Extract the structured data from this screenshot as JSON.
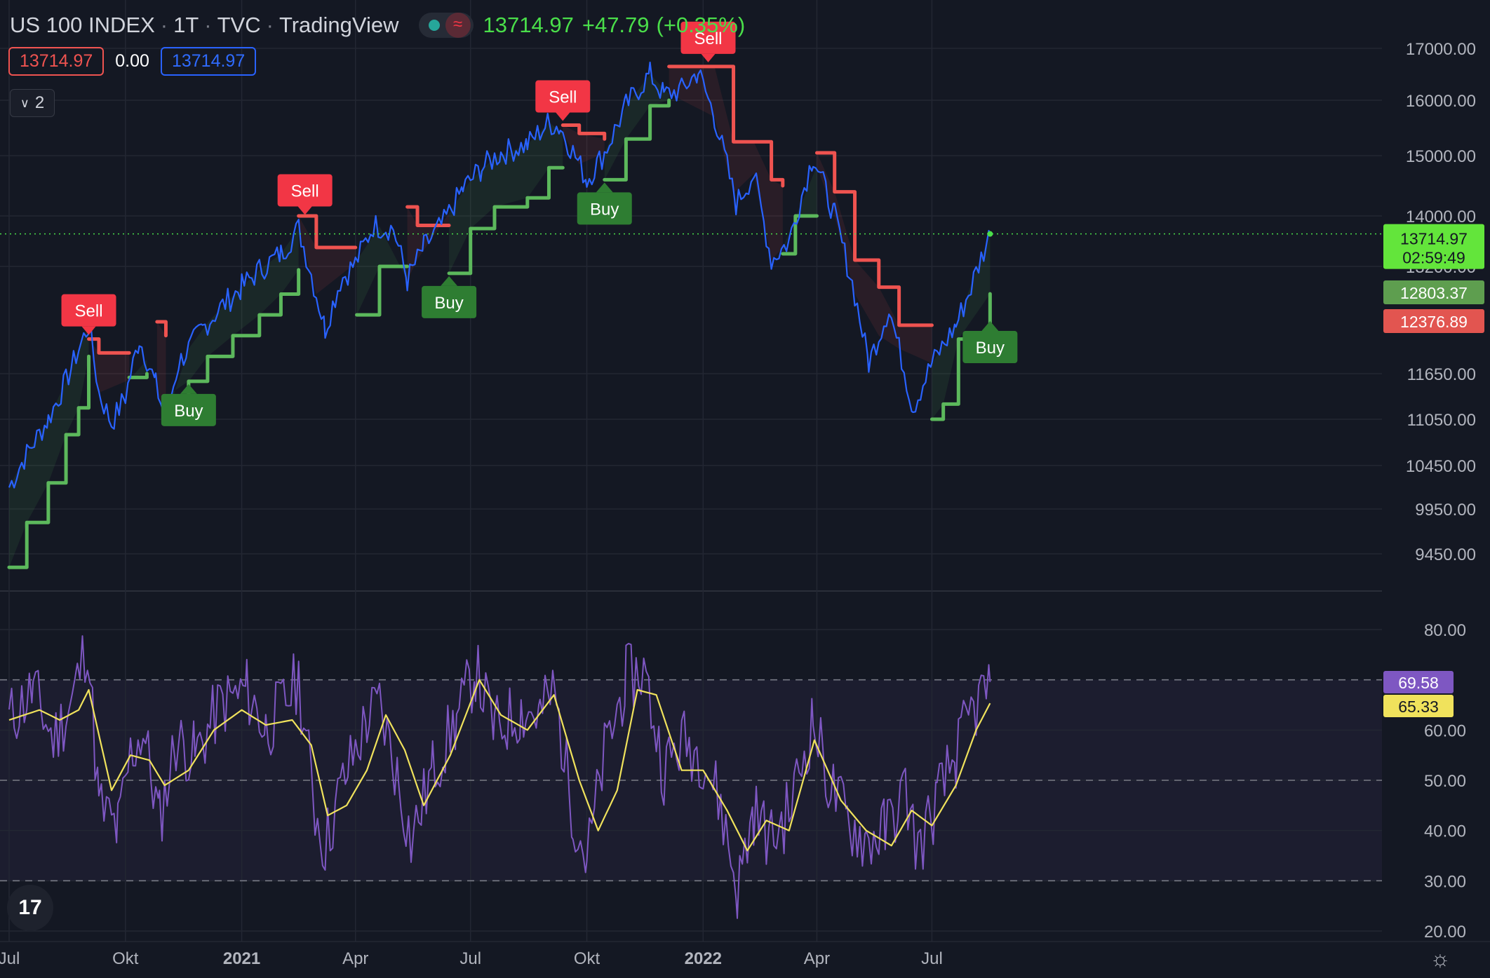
{
  "header": {
    "symbol": "US 100 INDEX",
    "interval": "1T",
    "exchange": "TVC",
    "platform": "TradingView",
    "last": "13714.97",
    "change": "+47.79",
    "change_pct": "(+0.35%)"
  },
  "values_row": {
    "v1": "13714.97",
    "v2": "0.00",
    "v3": "13714.97"
  },
  "collapse_label": "2",
  "logo_text": "17",
  "colors": {
    "background": "#141823",
    "price_line": "#2962ff",
    "supertrend_up": "#5cb85c",
    "supertrend_down": "#ef5350",
    "rsi": "#7e57c2",
    "rsi_ma": "#f0e25c",
    "last_price": "#4ade4a"
  },
  "chart_data": [
    {
      "type": "line",
      "yaxis_ticks": [
        17000,
        16000,
        15000,
        14000,
        13200,
        11650,
        11050,
        10450,
        9950,
        9450
      ],
      "yaxis_tick_labels": [
        "17000.00",
        "16000.00",
        "15000.00",
        "14000.00",
        "13200.00",
        "11650.00",
        "11050.00",
        "10450.00",
        "9950.00",
        "9450.00"
      ],
      "xaxis_labels": [
        "Jul",
        "Okt",
        "2021",
        "Apr",
        "Jul",
        "Okt",
        "2022",
        "Apr",
        "Jul"
      ],
      "grid": true,
      "price_points": [
        [
          "2020-07-01",
          10200
        ],
        [
          "2020-07-15",
          10600
        ],
        [
          "2020-08-01",
          11050
        ],
        [
          "2020-08-15",
          11550
        ],
        [
          "2020-08-25",
          12000
        ],
        [
          "2020-09-02",
          12350
        ],
        [
          "2020-09-10",
          11400
        ],
        [
          "2020-09-20",
          11000
        ],
        [
          "2020-10-01",
          11350
        ],
        [
          "2020-10-12",
          12150
        ],
        [
          "2020-10-25",
          11500
        ],
        [
          "2020-11-02",
          11050
        ],
        [
          "2020-11-12",
          11800
        ],
        [
          "2020-12-01",
          12300
        ],
        [
          "2020-12-15",
          12600
        ],
        [
          "2021-01-01",
          12900
        ],
        [
          "2021-01-15",
          13150
        ],
        [
          "2021-02-01",
          13400
        ],
        [
          "2021-02-15",
          13800
        ],
        [
          "2021-03-01",
          12800
        ],
        [
          "2021-03-08",
          12300
        ],
        [
          "2021-03-20",
          13000
        ],
        [
          "2021-04-01",
          13250
        ],
        [
          "2021-04-15",
          13850
        ],
        [
          "2021-05-01",
          13800
        ],
        [
          "2021-05-12",
          13000
        ],
        [
          "2021-05-25",
          13500
        ],
        [
          "2021-06-10",
          13900
        ],
        [
          "2021-06-25",
          14450
        ],
        [
          "2021-07-10",
          14800
        ],
        [
          "2021-07-25",
          15050
        ],
        [
          "2021-08-15",
          15200
        ],
        [
          "2021-09-01",
          15600
        ],
        [
          "2021-09-10",
          15500
        ],
        [
          "2021-10-01",
          14600
        ],
        [
          "2021-10-15",
          15050
        ],
        [
          "2021-11-01",
          15900
        ],
        [
          "2021-11-20",
          16500
        ],
        [
          "2021-12-01",
          16100
        ],
        [
          "2021-12-15",
          16200
        ],
        [
          "2021-12-28",
          16550
        ],
        [
          "2022-01-10",
          15700
        ],
        [
          "2022-01-27",
          14200
        ],
        [
          "2022-02-10",
          14700
        ],
        [
          "2022-02-24",
          13300
        ],
        [
          "2022-03-10",
          13600
        ],
        [
          "2022-03-29",
          15000
        ],
        [
          "2022-04-15",
          14000
        ],
        [
          "2022-05-01",
          12800
        ],
        [
          "2022-05-12",
          11800
        ],
        [
          "2022-05-28",
          12600
        ],
        [
          "2022-06-16",
          11200
        ],
        [
          "2022-07-01",
          11800
        ],
        [
          "2022-07-20",
          12350
        ],
        [
          "2022-08-01",
          12900
        ],
        [
          "2022-08-16",
          13714.97
        ]
      ],
      "supertrend_segments": [
        {
          "trend": "up",
          "points": [
            [
              "2020-07-01",
              9300
            ],
            [
              "2020-07-15",
              9800
            ],
            [
              "2020-08-01",
              10250
            ],
            [
              "2020-08-15",
              10850
            ],
            [
              "2020-08-25",
              11200
            ],
            [
              "2020-09-02",
              11900
            ]
          ]
        },
        {
          "trend": "down",
          "points": [
            [
              "2020-09-02",
              12150
            ],
            [
              "2020-09-10",
              11950
            ],
            [
              "2020-10-04",
              11950
            ]
          ]
        },
        {
          "trend": "up",
          "points": [
            [
              "2020-10-04",
              11600
            ],
            [
              "2020-10-18",
              11650
            ]
          ]
        },
        {
          "trend": "down",
          "points": [
            [
              "2020-10-26",
              12400
            ],
            [
              "2020-11-02",
              12200
            ]
          ]
        },
        {
          "trend": "up",
          "points": [
            [
              "2020-11-02",
              11350
            ],
            [
              "2020-11-20",
              11550
            ],
            [
              "2020-12-05",
              11900
            ],
            [
              "2020-12-25",
              12200
            ],
            [
              "2021-01-15",
              12500
            ],
            [
              "2021-02-01",
              12800
            ],
            [
              "2021-02-15",
              13150
            ]
          ]
        },
        {
          "trend": "down",
          "points": [
            [
              "2021-02-15",
              14000
            ],
            [
              "2021-03-01",
              13500
            ],
            [
              "2021-04-01",
              13500
            ]
          ]
        },
        {
          "trend": "up",
          "points": [
            [
              "2021-04-02",
              12500
            ],
            [
              "2021-04-20",
              13200
            ],
            [
              "2021-05-12",
              13200
            ]
          ]
        },
        {
          "trend": "down",
          "points": [
            [
              "2021-05-12",
              14150
            ],
            [
              "2021-05-20",
              13850
            ],
            [
              "2021-06-14",
              13850
            ]
          ]
        },
        {
          "trend": "up",
          "points": [
            [
              "2021-06-14",
              13100
            ],
            [
              "2021-07-01",
              13800
            ],
            [
              "2021-07-20",
              14150
            ],
            [
              "2021-08-15",
              14300
            ],
            [
              "2021-09-01",
              14800
            ],
            [
              "2021-09-12",
              14800
            ]
          ]
        },
        {
          "trend": "down",
          "points": [
            [
              "2021-09-12",
              15550
            ],
            [
              "2021-09-25",
              15400
            ],
            [
              "2021-10-15",
              15300
            ]
          ]
        },
        {
          "trend": "up",
          "points": [
            [
              "2021-10-15",
              14600
            ],
            [
              "2021-11-01",
              15300
            ],
            [
              "2021-11-20",
              15900
            ],
            [
              "2021-12-05",
              16000
            ]
          ]
        },
        {
          "trend": "down",
          "points": [
            [
              "2021-12-05",
              16650
            ],
            [
              "2022-01-10",
              16650
            ],
            [
              "2022-01-25",
              15250
            ],
            [
              "2022-02-10",
              15250
            ],
            [
              "2022-02-24",
              14600
            ],
            [
              "2022-03-05",
              14500
            ]
          ]
        },
        {
          "trend": "up",
          "points": [
            [
              "2022-03-05",
              13400
            ],
            [
              "2022-03-15",
              14000
            ],
            [
              "2022-04-01",
              14000
            ]
          ]
        },
        {
          "trend": "down",
          "points": [
            [
              "2022-04-01",
              15050
            ],
            [
              "2022-04-15",
              14400
            ],
            [
              "2022-05-01",
              13300
            ],
            [
              "2022-05-20",
              12900
            ],
            [
              "2022-06-05",
              12350
            ],
            [
              "2022-07-01",
              12350
            ]
          ]
        },
        {
          "trend": "up",
          "points": [
            [
              "2022-07-01",
              11050
            ],
            [
              "2022-07-10",
              11250
            ],
            [
              "2022-07-22",
              12150
            ],
            [
              "2022-08-16",
              12803.37
            ]
          ]
        }
      ],
      "signals": [
        {
          "label": "Sell",
          "type": "sell",
          "date": "2020-09-02",
          "price": 12150
        },
        {
          "label": "Buy",
          "type": "buy",
          "date": "2020-11-20",
          "price": 11550
        },
        {
          "label": "Sell",
          "type": "sell",
          "date": "2021-02-20",
          "price": 13950
        },
        {
          "label": "Buy",
          "type": "buy",
          "date": "2021-06-14",
          "price": 13100
        },
        {
          "label": "Sell",
          "type": "sell",
          "date": "2021-09-12",
          "price": 15550
        },
        {
          "label": "Buy",
          "type": "buy",
          "date": "2021-10-15",
          "price": 14600
        },
        {
          "label": "Sell",
          "type": "sell",
          "date": "2022-01-05",
          "price": 16650
        },
        {
          "label": "Buy",
          "type": "buy",
          "date": "2022-08-16",
          "price": 12450
        }
      ],
      "price_tags": [
        {
          "value": "13714.97",
          "extra": "02:59:49",
          "kind": "last"
        },
        {
          "value": "12803.37",
          "kind": "up"
        },
        {
          "value": "12376.89",
          "kind": "down"
        }
      ]
    },
    {
      "type": "line",
      "yaxis_ticks": [
        80,
        60,
        50,
        40,
        30,
        20
      ],
      "yaxis_tick_labels": [
        "80.00",
        "60.00",
        "50.00",
        "40.00",
        "30.00",
        "20.00"
      ],
      "band": [
        30,
        70
      ],
      "midline": 50,
      "rsi_points": [
        [
          "2020-07-01",
          62
        ],
        [
          "2020-07-20",
          68
        ],
        [
          "2020-08-05",
          58
        ],
        [
          "2020-08-20",
          66
        ],
        [
          "2020-09-01",
          78
        ],
        [
          "2020-09-10",
          45
        ],
        [
          "2020-09-25",
          40
        ],
        [
          "2020-10-05",
          55
        ],
        [
          "2020-10-15",
          60
        ],
        [
          "2020-10-28",
          42
        ],
        [
          "2020-11-10",
          58
        ],
        [
          "2020-11-25",
          55
        ],
        [
          "2020-12-15",
          65
        ],
        [
          "2021-01-05",
          68
        ],
        [
          "2021-01-20",
          60
        ],
        [
          "2021-02-05",
          66
        ],
        [
          "2021-02-15",
          70
        ],
        [
          "2021-02-28",
          44
        ],
        [
          "2021-03-08",
          37
        ],
        [
          "2021-03-20",
          48
        ],
        [
          "2021-04-10",
          62
        ],
        [
          "2021-04-20",
          65
        ],
        [
          "2021-05-05",
          50
        ],
        [
          "2021-05-15",
          38
        ],
        [
          "2021-06-01",
          52
        ],
        [
          "2021-06-20",
          62
        ],
        [
          "2021-07-05",
          72
        ],
        [
          "2021-07-20",
          60
        ],
        [
          "2021-08-10",
          64
        ],
        [
          "2021-08-25",
          63
        ],
        [
          "2021-09-05",
          68
        ],
        [
          "2021-09-20",
          44
        ],
        [
          "2021-10-01",
          34
        ],
        [
          "2021-10-15",
          55
        ],
        [
          "2021-11-01",
          70
        ],
        [
          "2021-11-15",
          72
        ],
        [
          "2021-12-01",
          52
        ],
        [
          "2021-12-15",
          58
        ],
        [
          "2022-01-01",
          55
        ],
        [
          "2022-01-15",
          45
        ],
        [
          "2022-01-28",
          28
        ],
        [
          "2022-02-10",
          44
        ],
        [
          "2022-02-24",
          38
        ],
        [
          "2022-03-10",
          44
        ],
        [
          "2022-03-29",
          62
        ],
        [
          "2022-04-10",
          50
        ],
        [
          "2022-04-25",
          42
        ],
        [
          "2022-05-10",
          38
        ],
        [
          "2022-05-25",
          40
        ],
        [
          "2022-06-10",
          48
        ],
        [
          "2022-06-20",
          36
        ],
        [
          "2022-07-05",
          46
        ],
        [
          "2022-07-20",
          55
        ],
        [
          "2022-08-01",
          63
        ],
        [
          "2022-08-16",
          69.58
        ]
      ],
      "rsi_ma_points": [
        [
          "2020-07-01",
          62
        ],
        [
          "2020-07-25",
          64
        ],
        [
          "2020-08-10",
          62
        ],
        [
          "2020-08-25",
          64
        ],
        [
          "2020-09-02",
          68
        ],
        [
          "2020-09-20",
          48
        ],
        [
          "2020-10-05",
          55
        ],
        [
          "2020-10-20",
          54
        ],
        [
          "2020-11-01",
          49
        ],
        [
          "2020-11-20",
          52
        ],
        [
          "2020-12-10",
          60
        ],
        [
          "2021-01-01",
          64
        ],
        [
          "2021-01-20",
          61
        ],
        [
          "2021-02-10",
          62
        ],
        [
          "2021-02-25",
          57
        ],
        [
          "2021-03-10",
          43
        ],
        [
          "2021-03-25",
          45
        ],
        [
          "2021-04-10",
          52
        ],
        [
          "2021-04-25",
          63
        ],
        [
          "2021-05-10",
          56
        ],
        [
          "2021-05-25",
          45
        ],
        [
          "2021-06-15",
          55
        ],
        [
          "2021-07-08",
          70
        ],
        [
          "2021-07-25",
          63
        ],
        [
          "2021-08-15",
          60
        ],
        [
          "2021-09-05",
          67
        ],
        [
          "2021-09-25",
          50
        ],
        [
          "2021-10-10",
          40
        ],
        [
          "2021-10-25",
          48
        ],
        [
          "2021-11-10",
          68
        ],
        [
          "2021-11-25",
          67
        ],
        [
          "2021-12-15",
          52
        ],
        [
          "2022-01-01",
          52
        ],
        [
          "2022-01-20",
          44
        ],
        [
          "2022-02-05",
          36
        ],
        [
          "2022-02-20",
          42
        ],
        [
          "2022-03-10",
          40
        ],
        [
          "2022-03-30",
          58
        ],
        [
          "2022-04-20",
          46
        ],
        [
          "2022-05-10",
          40
        ],
        [
          "2022-05-30",
          37
        ],
        [
          "2022-06-15",
          44
        ],
        [
          "2022-07-01",
          41
        ],
        [
          "2022-07-20",
          49
        ],
        [
          "2022-08-05",
          60
        ],
        [
          "2022-08-16",
          65.33
        ]
      ],
      "tags": [
        {
          "value": "69.58",
          "kind": "rsi"
        },
        {
          "value": "65.33",
          "kind": "ma"
        }
      ]
    }
  ]
}
